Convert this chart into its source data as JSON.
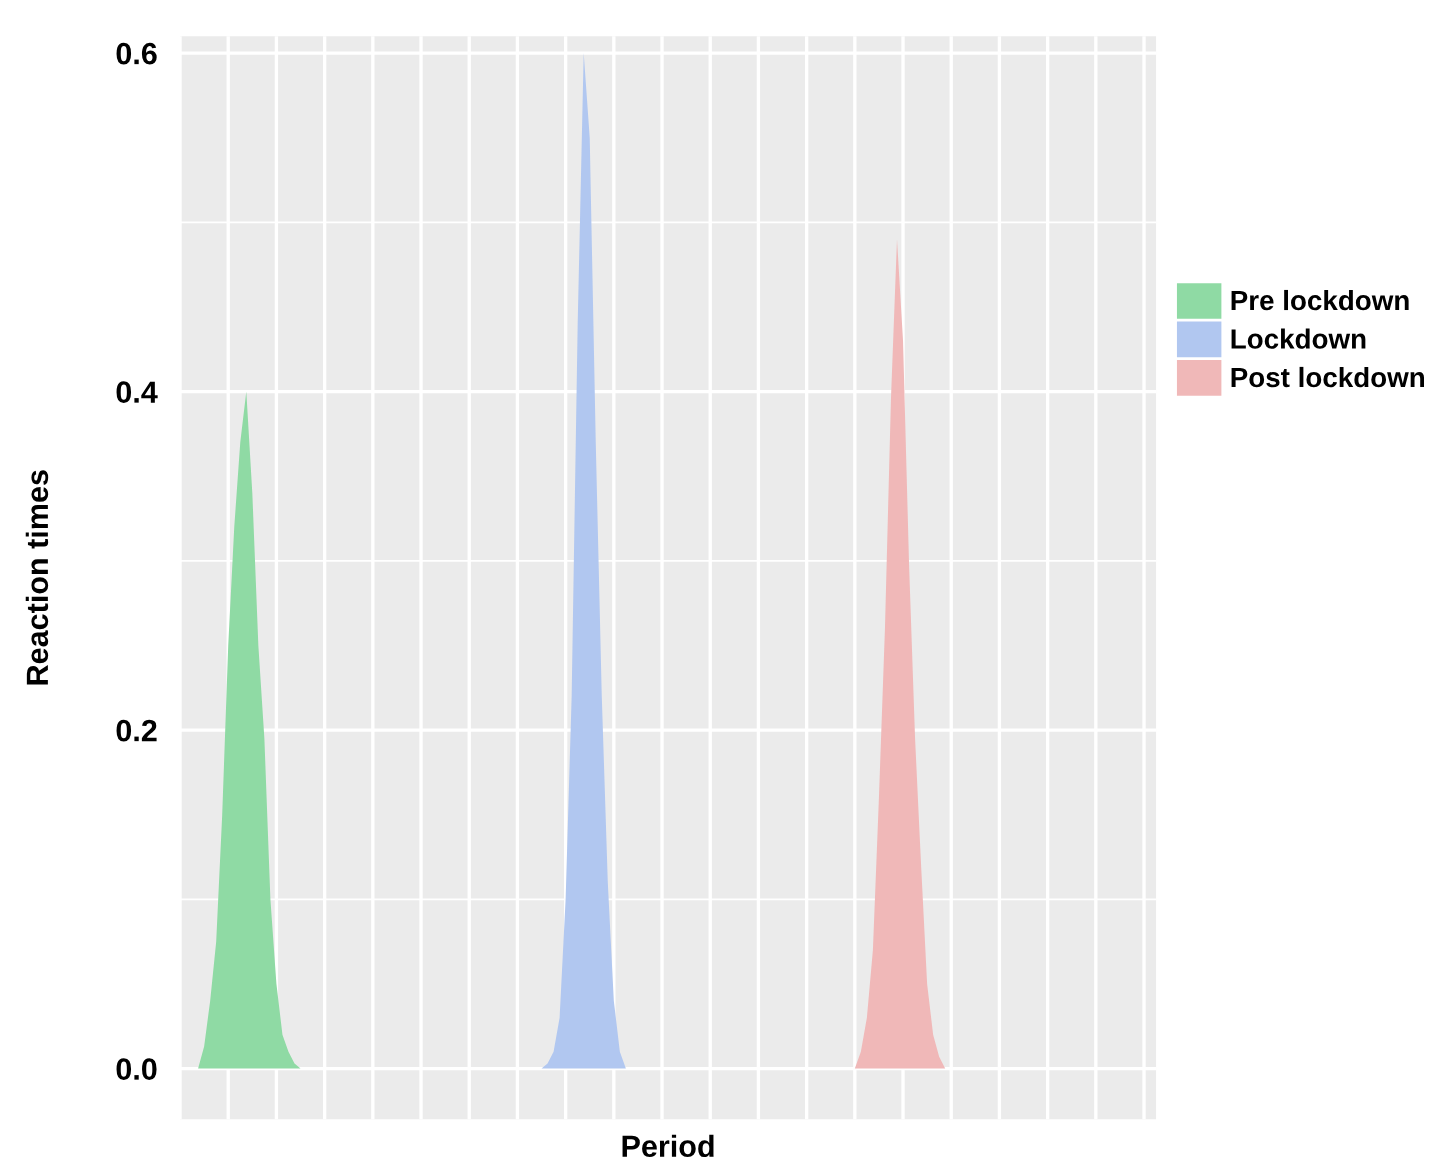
{
  "chart_data": {
    "type": "area",
    "xlabel": "Period",
    "ylabel": "Reaction times",
    "ylim": [
      -0.03,
      0.61
    ],
    "yticks": [
      {
        "value": 0.0,
        "label": "0.0"
      },
      0.2,
      0.4,
      0.6
    ],
    "grid": true,
    "legend": "right",
    "categories": [
      null,
      null,
      null,
      null,
      null,
      null,
      null,
      null,
      null,
      null,
      null,
      null,
      null,
      null,
      null,
      null,
      null,
      null,
      null,
      null,
      null,
      null,
      null,
      null,
      null,
      null,
      null,
      null,
      null,
      null,
      null,
      null,
      null,
      null,
      null,
      null,
      null,
      null,
      null,
      null,
      null,
      null,
      null,
      null,
      null,
      null,
      null,
      null,
      null,
      null,
      null,
      null,
      null,
      null,
      null,
      null,
      null,
      null,
      null,
      null,
      null,
      null,
      null,
      null,
      null,
      null,
      null,
      null,
      null,
      null,
      null,
      null,
      null,
      null,
      null,
      null,
      null,
      null,
      null,
      null,
      null,
      null,
      null,
      null,
      null,
      null,
      null,
      null,
      null,
      null,
      null,
      null,
      null,
      null,
      null,
      null,
      null,
      null,
      null,
      null,
      null,
      null,
      null,
      null,
      null,
      null,
      null,
      null,
      null,
      null,
      null,
      null,
      null,
      null,
      null,
      null,
      null,
      null,
      null,
      null,
      null,
      null,
      null,
      null,
      null,
      null,
      null,
      null,
      null,
      null,
      null,
      null,
      null,
      null,
      null,
      null,
      null,
      null,
      null,
      null,
      null,
      null,
      null,
      null,
      null,
      null,
      null,
      null,
      null,
      null,
      null,
      null,
      null,
      null,
      null,
      null,
      null,
      null,
      null,
      null,
      null,
      null,
      null
    ],
    "series": [
      {
        "name": "Pre lockdown",
        "color": "#8fdaa4",
        "values": [
          null,
          null,
          0,
          0,
          0.013,
          0.04,
          0.075,
          0.15,
          0.25,
          0.32,
          0.37,
          0.4,
          0.34,
          0.25,
          0.195,
          0.1,
          0.05,
          0.02,
          0.01,
          0.003,
          0,
          null,
          null,
          null,
          null,
          null,
          null,
          null,
          null,
          null,
          null,
          null,
          null,
          null,
          null,
          null,
          null,
          null,
          null,
          null,
          null,
          null,
          null,
          null,
          null,
          null,
          null,
          null,
          null,
          null,
          null,
          null,
          null,
          null,
          null,
          null,
          null,
          null,
          null,
          null,
          null,
          null,
          null,
          null,
          null,
          null,
          null,
          null,
          null,
          null,
          null,
          null,
          null,
          null,
          null,
          null,
          null,
          null,
          null,
          null,
          null,
          null,
          null,
          null,
          null,
          null,
          null,
          null,
          null,
          null,
          null,
          null,
          null,
          null,
          null,
          null,
          null,
          null,
          null,
          null,
          null,
          null,
          null,
          null,
          null,
          null,
          null,
          null,
          null,
          null,
          null,
          null,
          null,
          null,
          null,
          null,
          null,
          null,
          null,
          null,
          null,
          null,
          null,
          null,
          null,
          null,
          null,
          null,
          null,
          null,
          null,
          null,
          null,
          null,
          null,
          null,
          null,
          null,
          null,
          null,
          null,
          null,
          null,
          null,
          null,
          null,
          null,
          null,
          null,
          null,
          null,
          null,
          null,
          null,
          null,
          null,
          null,
          null,
          null,
          null,
          null,
          null,
          null
        ]
      },
      {
        "name": "Lockdown",
        "color": "#b1c7f0",
        "values": [
          null,
          null,
          null,
          null,
          null,
          null,
          null,
          null,
          null,
          null,
          null,
          null,
          null,
          null,
          null,
          null,
          null,
          null,
          null,
          null,
          null,
          null,
          null,
          null,
          null,
          null,
          null,
          null,
          null,
          null,
          null,
          null,
          null,
          null,
          null,
          null,
          null,
          null,
          null,
          null,
          null,
          null,
          null,
          null,
          null,
          null,
          null,
          null,
          null,
          null,
          null,
          null,
          null,
          null,
          null,
          null,
          null,
          null,
          null,
          null,
          0,
          0.003,
          0.01,
          0.03,
          0.1,
          0.22,
          0.44,
          0.6,
          0.55,
          0.37,
          0.22,
          0.11,
          0.04,
          0.01,
          0,
          null,
          null,
          null,
          null,
          null,
          null,
          null,
          null,
          null,
          null,
          null,
          null,
          null,
          null,
          null,
          null,
          null,
          null,
          null,
          null,
          null,
          null,
          null,
          null,
          null,
          null,
          null,
          null,
          null,
          null,
          null,
          null,
          null,
          null,
          null,
          null,
          null,
          null,
          null,
          null,
          null,
          null,
          null,
          null,
          null,
          null,
          null,
          null,
          null,
          null,
          null,
          null,
          null,
          null,
          null,
          null,
          null,
          null,
          null,
          null,
          null,
          null,
          null,
          null,
          null,
          null,
          null,
          null,
          null,
          null,
          null,
          null,
          null,
          null,
          null,
          null,
          null,
          null,
          null,
          null,
          null,
          null,
          null,
          null,
          null,
          null,
          null,
          null
        ]
      },
      {
        "name": "Post lockdown",
        "color": "#f0b8b8",
        "values": [
          null,
          null,
          null,
          null,
          null,
          null,
          null,
          null,
          null,
          null,
          null,
          null,
          null,
          null,
          null,
          null,
          null,
          null,
          null,
          null,
          null,
          null,
          null,
          null,
          null,
          null,
          null,
          null,
          null,
          null,
          null,
          null,
          null,
          null,
          null,
          null,
          null,
          null,
          null,
          null,
          null,
          null,
          null,
          null,
          null,
          null,
          null,
          null,
          null,
          null,
          null,
          null,
          null,
          null,
          null,
          null,
          null,
          null,
          null,
          null,
          null,
          null,
          null,
          null,
          null,
          null,
          null,
          null,
          null,
          null,
          null,
          null,
          null,
          null,
          null,
          null,
          null,
          null,
          null,
          null,
          null,
          null,
          null,
          null,
          null,
          null,
          null,
          null,
          null,
          null,
          null,
          null,
          null,
          null,
          null,
          null,
          null,
          null,
          null,
          null,
          null,
          null,
          null,
          null,
          null,
          null,
          null,
          null,
          null,
          null,
          null,
          null,
          0,
          0.01,
          0.03,
          0.07,
          0.16,
          0.26,
          0.396,
          0.49,
          0.43,
          0.298,
          0.195,
          0.12,
          0.05,
          0.02,
          0.007,
          0,
          null,
          null,
          null,
          null,
          null,
          null,
          null,
          null,
          null,
          null,
          null,
          null,
          null,
          null,
          null,
          null,
          null,
          null,
          null,
          null,
          null,
          null,
          null,
          null,
          null,
          null,
          null,
          null,
          null,
          null,
          null,
          null,
          null,
          null,
          null
        ]
      }
    ]
  }
}
